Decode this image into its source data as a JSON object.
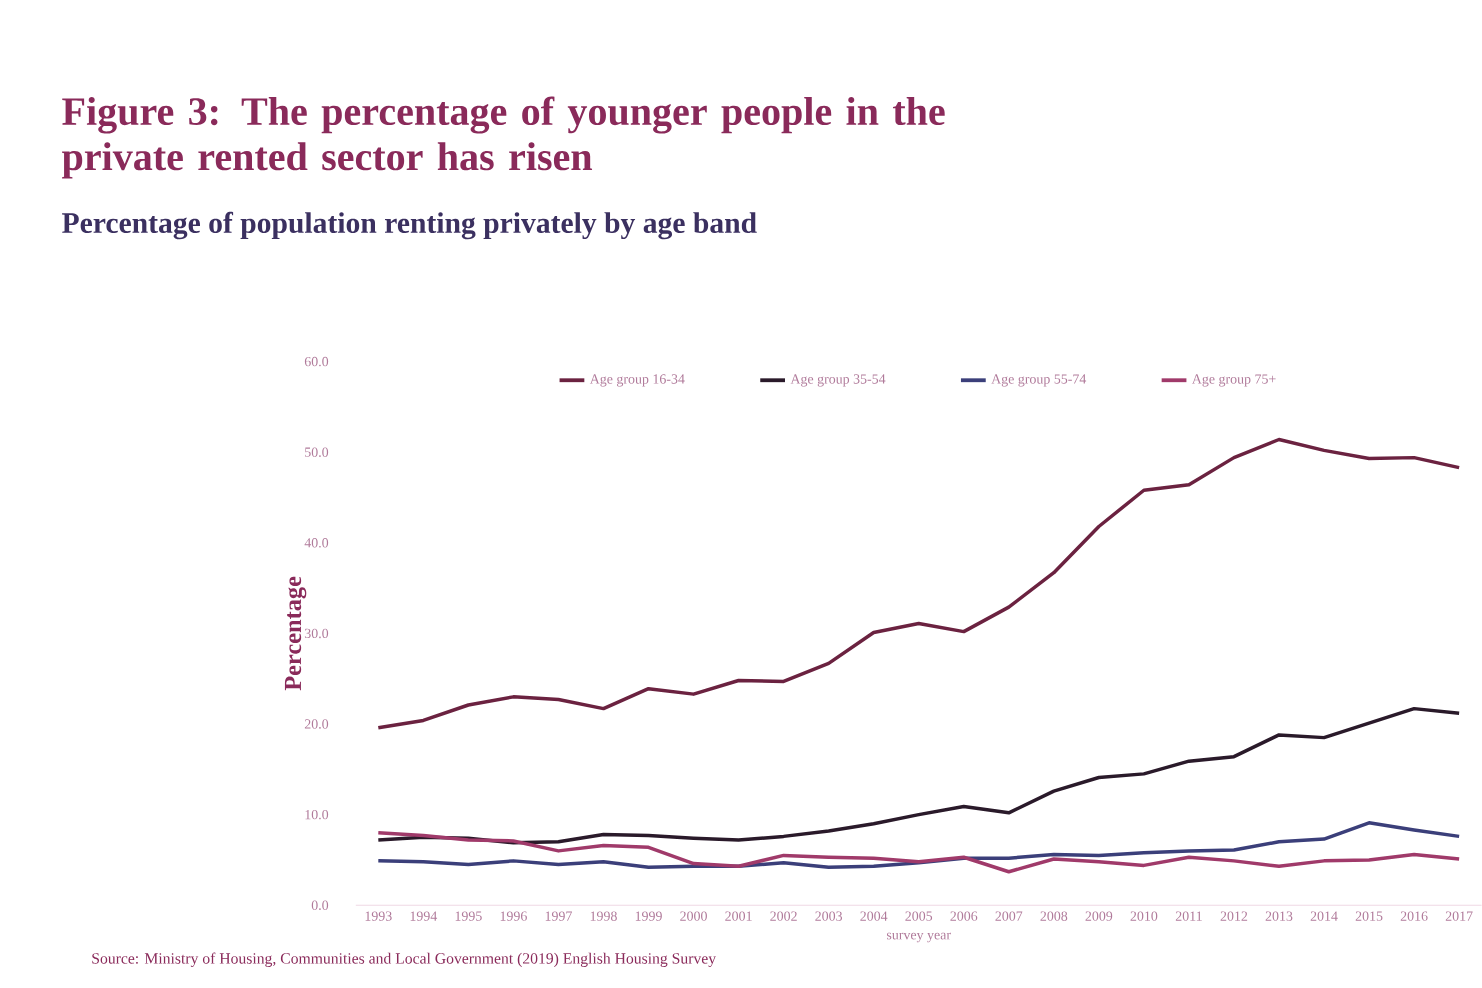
{
  "chart_data": {
    "type": "line",
    "title": "Figure 3: The percentage of younger people in the private rented sector has risen",
    "subtitle": "Percentage of population renting privately by age band",
    "xlabel": "survey year",
    "ylabel": "Percentage",
    "categories": [
      "1993",
      "1994",
      "1995",
      "1996",
      "1997",
      "1998",
      "1999",
      "2000",
      "2001",
      "2002",
      "2003",
      "2004",
      "2005",
      "2006",
      "2007",
      "2008",
      "2009",
      "2010",
      "2011",
      "2012",
      "2013",
      "2014",
      "2015",
      "2016",
      "2017"
    ],
    "series": [
      {
        "name": "Age group 16-34",
        "color": "#6b2240",
        "values": [
          19.6,
          20.4,
          22.1,
          23.0,
          22.7,
          21.7,
          23.9,
          23.3,
          24.8,
          24.7,
          26.7,
          30.1,
          31.1,
          30.2,
          32.9,
          36.7,
          41.8,
          45.8,
          46.4,
          49.4,
          51.4,
          50.2,
          49.3,
          49.4,
          48.3
        ]
      },
      {
        "name": "Age group 35-54",
        "color": "#2a1a2a",
        "values": [
          7.2,
          7.5,
          7.4,
          6.9,
          7.0,
          7.8,
          7.7,
          7.4,
          7.2,
          7.6,
          8.2,
          9.0,
          10.0,
          10.9,
          10.2,
          12.6,
          14.1,
          14.5,
          15.9,
          16.4,
          18.8,
          18.5,
          20.1,
          21.7,
          21.2
        ]
      },
      {
        "name": "Age group 55-74",
        "color": "#3b3f7a",
        "values": [
          4.9,
          4.8,
          4.5,
          4.9,
          4.5,
          4.8,
          4.2,
          4.3,
          4.3,
          4.7,
          4.2,
          4.3,
          4.7,
          5.2,
          5.2,
          5.6,
          5.5,
          5.8,
          6.0,
          6.1,
          7.0,
          7.3,
          9.1,
          8.3,
          7.6
        ]
      },
      {
        "name": "Age group 75+",
        "color": "#a03a6a",
        "values": [
          8.0,
          7.7,
          7.2,
          7.1,
          6.0,
          6.6,
          6.4,
          4.6,
          4.3,
          5.5,
          5.3,
          5.2,
          4.8,
          5.3,
          3.7,
          5.1,
          4.8,
          4.4,
          5.3,
          4.9,
          4.3,
          4.9,
          5.0,
          5.6,
          5.1
        ]
      }
    ],
    "ylim": [
      0,
      60
    ],
    "yticks": [
      {
        "value": 0,
        "label": "0.0"
      },
      {
        "value": 10,
        "label": "10.0"
      },
      {
        "value": 20,
        "label": "20.0"
      },
      {
        "value": 30,
        "label": "30.0"
      },
      {
        "value": 40,
        "label": "40.0"
      },
      {
        "value": 50,
        "label": "50.0"
      },
      {
        "value": 60,
        "label": "60.0"
      }
    ],
    "legend": "top",
    "line_style": "solid",
    "annotations": [
      "Source: Ministry of Housing, Communities and Local Government (2019) English Housing Survey"
    ]
  }
}
